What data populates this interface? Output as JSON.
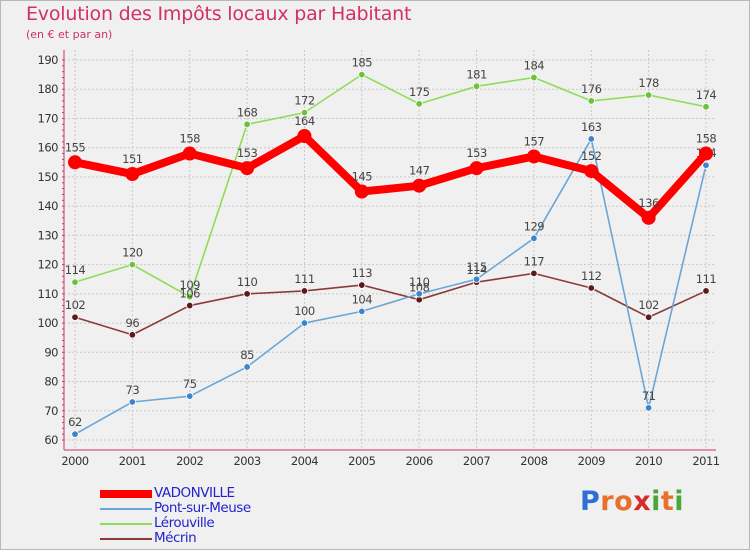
{
  "title": "Evolution des Impôts locaux par Habitant",
  "subtitle": "(en € et par an)",
  "logo": {
    "letters": [
      "P",
      "r",
      "o",
      "x",
      "i",
      "t",
      "i"
    ],
    "colors": [
      "#2f6fd1",
      "#e8702a",
      "#e8702a",
      "#d62b2b",
      "#4aa83a",
      "#e8702a",
      "#4aa83a"
    ]
  },
  "chart_data": {
    "type": "line",
    "title": "Evolution des Impôts locaux par Habitant",
    "subtitle": "(en € et par an)",
    "xlabel": "",
    "ylabel": "",
    "ylim": [
      60,
      190
    ],
    "yticks": [
      60,
      70,
      80,
      90,
      100,
      110,
      120,
      130,
      140,
      150,
      160,
      170,
      180,
      190
    ],
    "grid": true,
    "legend_position": "bottom-left",
    "categories": [
      "2000",
      "2001",
      "2002",
      "2003",
      "2004",
      "2005",
      "2006",
      "2007",
      "2008",
      "2009",
      "2010",
      "2011"
    ],
    "series": [
      {
        "name": "Lérouville",
        "color": "#8fdc5a",
        "marker": "#6cc23a",
        "values": [
          114,
          120,
          109,
          168,
          172,
          185,
          175,
          181,
          184,
          176,
          178,
          174
        ]
      },
      {
        "name": "Mécrin",
        "color": "#8b3a3a",
        "marker": "#5e1a1a",
        "values": [
          102,
          96,
          106,
          110,
          111,
          113,
          108,
          114,
          117,
          112,
          102,
          111
        ]
      },
      {
        "name": "Pont-sur-Meuse",
        "color": "#6aa6d6",
        "marker": "#3a86cc",
        "values": [
          62,
          73,
          75,
          85,
          100,
          104,
          110,
          115,
          129,
          163,
          71,
          154
        ]
      },
      {
        "name": "VADONVILLE",
        "color": "#ff0000",
        "marker": "#ff0000",
        "values": [
          155,
          151,
          158,
          153,
          164,
          145,
          147,
          153,
          157,
          152,
          136,
          158
        ]
      }
    ],
    "legend_order": [
      "VADONVILLE",
      "Pont-sur-Meuse",
      "Lérouville",
      "Mécrin"
    ]
  }
}
